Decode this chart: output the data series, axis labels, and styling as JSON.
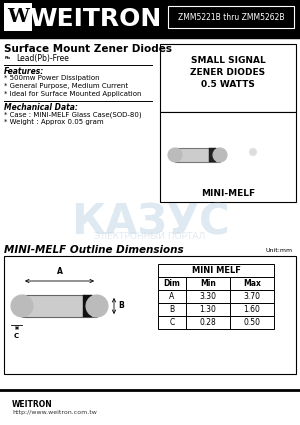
{
  "title_company": "WEITRON",
  "part_number": "ZMM5221B thru ZMM5262B",
  "subtitle": "Surface Mount Zener Diodes",
  "pb_free": "Lead(Pb)-Free",
  "features_title": "Features:",
  "features": [
    "* 500mw Power Dissipation",
    "* General Purpose, Medium Current",
    "* Ideal for Surface Mounted Application"
  ],
  "mech_title": "Mechanical Data:",
  "mech": [
    "* Case : MINI-MELF Glass Case(SOD-80)",
    "* Weight : Approx 0.05 gram"
  ],
  "signal_box_lines": [
    "SMALL SIGNAL",
    "ZENER DIODES",
    "0.5 WATTS"
  ],
  "package_label": "MINI-MELF",
  "outline_title": "MINI-MELF Outline Dimensions",
  "unit_label": "Unit:mm",
  "table_title": "MINI MELF",
  "table_headers": [
    "Dim",
    "Min",
    "Max"
  ],
  "table_rows": [
    [
      "A",
      "3.30",
      "3.70"
    ],
    [
      "B",
      "1.30",
      "1.60"
    ],
    [
      "C",
      "0.28",
      "0.50"
    ]
  ],
  "footer_company": "WEITRON",
  "footer_url": "http://www.weitron.com.tw",
  "bg_color": "#ffffff"
}
